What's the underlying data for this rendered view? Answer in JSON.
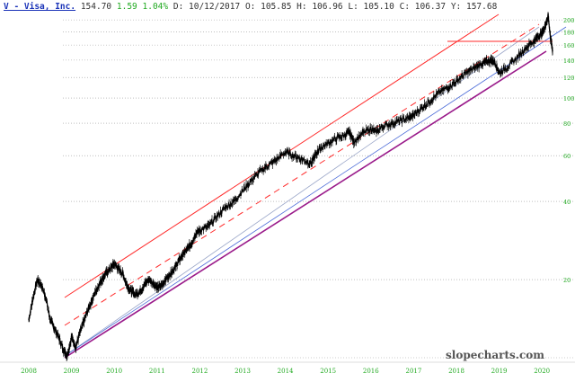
{
  "header": {
    "symbol_title": "V - Visa, Inc.",
    "last": "154.70",
    "change": "1.59",
    "change_pct": "1.04%",
    "date_label": "D: 10/12/2017",
    "open_label": "O: 105.85",
    "high_label": "H: 106.96",
    "low_label": "L: 105.10",
    "close_label": "C: 106.37",
    "y_label": "Y: 157.68"
  },
  "watermark": "slopecharts.com",
  "colors": {
    "price": "#000000",
    "channel_upper": "#ff2a2a",
    "channel_mid": "#ff2a2a",
    "channel_lower": "#9a1a8a",
    "trend_thin": "#9aa6c8",
    "trend_blue": "#4a6ad8",
    "horizontal_line": "#ff2a2a",
    "grid": "#999999",
    "x_tick": "#22aa22",
    "y_tick": "#22aa22"
  },
  "chart_data": {
    "type": "line",
    "title": "V - Visa, Inc.",
    "xlabel": "",
    "ylabel": "",
    "y_scale": "log",
    "ylim": [
      10,
      210
    ],
    "xlim": [
      2007.8,
      2020.6
    ],
    "grid": "horizontal dotted",
    "x_ticks": [
      "2008",
      "2009",
      "2010",
      "2011",
      "2012",
      "2013",
      "2014",
      "2015",
      "2016",
      "2017",
      "2018",
      "2019",
      "2020"
    ],
    "y_ticks": [
      20,
      40,
      60,
      80,
      100,
      120,
      140,
      160,
      180,
      200
    ],
    "series": [
      {
        "x": [
          2008.0,
          2008.1,
          2008.2,
          2008.3,
          2008.4,
          2008.5,
          2008.6,
          2008.7,
          2008.8,
          2008.9,
          2009.0,
          2009.1,
          2009.2,
          2009.3,
          2009.4,
          2009.5,
          2009.6,
          2009.7,
          2009.8,
          2009.9,
          2010.0,
          2010.1,
          2010.2,
          2010.3,
          2010.4,
          2010.5,
          2010.6,
          2010.7,
          2010.8,
          2010.9,
          2011.0,
          2011.1,
          2011.2,
          2011.3,
          2011.4,
          2011.5,
          2011.6,
          2011.7,
          2011.8,
          2011.9,
          2012.0,
          2012.2,
          2012.4,
          2012.6,
          2012.8,
          2013.0,
          2013.2,
          2013.4,
          2013.6,
          2013.8,
          2014.0,
          2014.2,
          2014.4,
          2014.6,
          2014.7,
          2014.8,
          2015.0,
          2015.2,
          2015.4,
          2015.5,
          2015.6,
          2015.8,
          2016.0,
          2016.1,
          2016.3,
          2016.5,
          2016.7,
          2016.9,
          2017.0,
          2017.2,
          2017.4,
          2017.6,
          2017.8,
          2018.0,
          2018.2,
          2018.4,
          2018.6,
          2018.7,
          2018.8,
          2018.9,
          2019.0,
          2019.2,
          2019.4,
          2019.6,
          2019.8,
          2019.9,
          2020.0,
          2020.05,
          2020.1,
          2020.15,
          2020.2,
          2020.25
        ],
        "y": [
          14,
          17,
          20,
          19,
          17,
          14,
          13,
          12,
          10.8,
          10.2,
          12,
          11,
          12.5,
          14,
          15.5,
          17,
          18.5,
          20,
          21,
          22,
          23,
          22,
          21,
          19,
          18,
          17.5,
          18,
          19,
          20,
          19.5,
          18.5,
          19,
          20,
          21,
          22,
          23.5,
          25,
          26,
          27.5,
          30,
          31,
          32,
          35,
          38,
          40,
          44,
          48,
          52,
          55,
          58,
          62,
          60,
          58,
          56,
          60,
          64,
          67,
          70,
          72,
          74,
          68,
          73,
          76,
          74,
          78,
          80,
          82,
          84,
          86,
          92,
          98,
          105,
          110,
          116,
          124,
          130,
          136,
          138,
          140,
          138,
          125,
          132,
          142,
          155,
          165,
          172,
          178,
          185,
          195,
          205,
          170,
          152
        ]
      }
    ]
  }
}
